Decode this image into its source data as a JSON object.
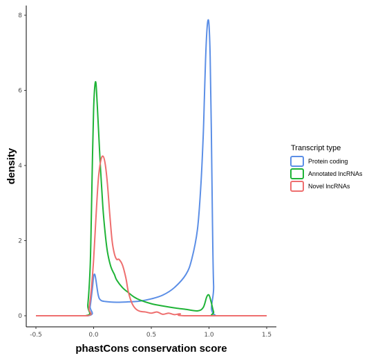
{
  "chart_data": {
    "type": "line",
    "title": "",
    "xlabel": "phastCons conservation score",
    "ylabel": "density",
    "xlim": [
      -0.5,
      1.5
    ],
    "ylim": [
      0,
      8
    ],
    "x_ticks": [
      "-0.5",
      "0.0",
      "0.5",
      "1.0",
      "1.5"
    ],
    "y_ticks": [
      "0",
      "2",
      "4",
      "6",
      "8"
    ],
    "grid": false,
    "legend": {
      "title": "Transcript type",
      "position": "right"
    },
    "series": [
      {
        "name": "Protein coding",
        "color": "#5b8ee6",
        "x": [
          -0.5,
          -0.05,
          -0.03,
          -0.01,
          0.0,
          0.01,
          0.02,
          0.04,
          0.06,
          0.1,
          0.2,
          0.3,
          0.4,
          0.5,
          0.6,
          0.7,
          0.8,
          0.85,
          0.9,
          0.93,
          0.95,
          0.96,
          0.97,
          0.98,
          0.99,
          1.0,
          1.01,
          1.02,
          1.03,
          1.04,
          1.06,
          1.5
        ],
        "y": [
          0,
          0,
          0.25,
          0.75,
          1.05,
          1.1,
          0.95,
          0.55,
          0.42,
          0.38,
          0.36,
          0.37,
          0.39,
          0.45,
          0.55,
          0.75,
          1.1,
          1.5,
          2.3,
          3.5,
          4.8,
          5.8,
          6.8,
          7.5,
          7.85,
          7.75,
          6.9,
          5.0,
          2.5,
          0.8,
          0,
          0
        ]
      },
      {
        "name": "Annotated lncRNAs",
        "color": "#1eb336",
        "x": [
          -0.5,
          -0.07,
          -0.05,
          -0.03,
          -0.02,
          -0.01,
          0.0,
          0.01,
          0.02,
          0.03,
          0.04,
          0.06,
          0.08,
          0.1,
          0.12,
          0.15,
          0.18,
          0.2,
          0.25,
          0.3,
          0.35,
          0.4,
          0.5,
          0.6,
          0.7,
          0.8,
          0.9,
          0.95,
          0.98,
          1.0,
          1.02,
          1.04,
          1.06,
          1.5
        ],
        "y": [
          0,
          0,
          0.3,
          1.3,
          2.6,
          4.2,
          5.5,
          6.1,
          6.2,
          5.7,
          5.1,
          3.9,
          2.9,
          2.2,
          1.7,
          1.3,
          1.1,
          0.95,
          0.75,
          0.62,
          0.5,
          0.42,
          0.32,
          0.26,
          0.21,
          0.17,
          0.13,
          0.22,
          0.5,
          0.55,
          0.35,
          0.1,
          0,
          0
        ]
      },
      {
        "name": "Novel lncRNAs",
        "color": "#ee6e6e",
        "x": [
          -0.5,
          -0.06,
          -0.04,
          -0.02,
          0.0,
          0.02,
          0.04,
          0.06,
          0.08,
          0.1,
          0.12,
          0.14,
          0.16,
          0.18,
          0.2,
          0.22,
          0.25,
          0.28,
          0.3,
          0.33,
          0.36,
          0.4,
          0.45,
          0.5,
          0.55,
          0.6,
          0.65,
          0.7,
          0.75,
          0.8,
          1.5
        ],
        "y": [
          0,
          0,
          0.2,
          0.7,
          1.5,
          2.6,
          3.6,
          4.1,
          4.25,
          4.05,
          3.5,
          2.7,
          2.0,
          1.65,
          1.5,
          1.5,
          1.35,
          1.0,
          0.65,
          0.35,
          0.2,
          0.12,
          0.1,
          0.07,
          0.1,
          0.04,
          0.07,
          0.03,
          0.05,
          0,
          0
        ]
      }
    ]
  }
}
